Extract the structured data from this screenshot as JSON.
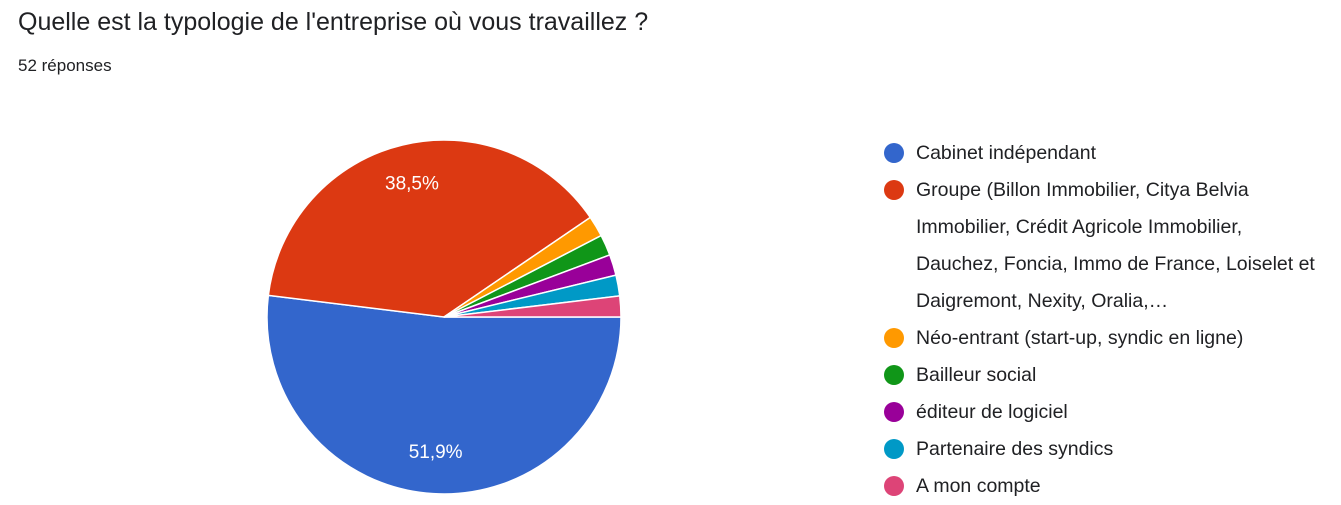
{
  "chart_data": {
    "type": "pie",
    "title": "Quelle est la typologie de l'entreprise où vous travaillez ?",
    "subtitle": "52 réponses",
    "categories": [
      "Cabinet indépendant",
      "Groupe (Billon Immobilier, Citya Belvia Immobilier, Crédit Agricole Immobilier, Dauchez, Foncia, Immo de France, Loiselet et Daigremont, Nexity, Oralia,…",
      "Néo-entrant (start-up, syndic en ligne)",
      "Bailleur social",
      "éditeur de logiciel",
      "Partenaire des syndics",
      "A mon compte"
    ],
    "values": [
      51.9,
      38.5,
      1.9,
      1.9,
      1.9,
      1.9,
      1.9
    ],
    "value_labels": [
      "51,9%",
      "38,5%",
      null,
      null,
      null,
      null,
      null
    ],
    "colors": [
      "#3366cc",
      "#dc3912",
      "#ff9900",
      "#109618",
      "#990099",
      "#0099c6",
      "#dd4477"
    ],
    "legend": "right"
  }
}
